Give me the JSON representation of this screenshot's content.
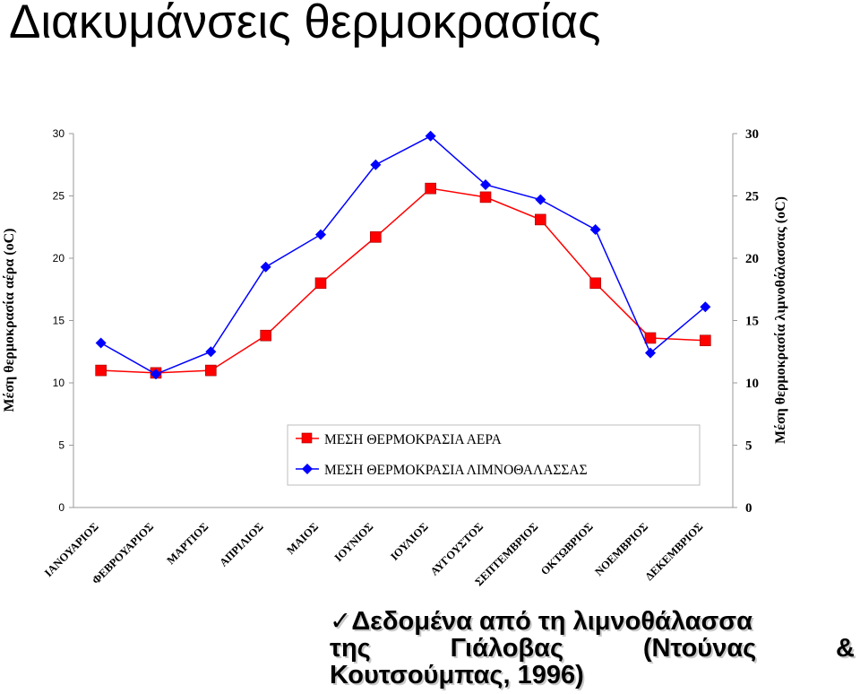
{
  "title": "Διακυμάνσεις θερμοκρασίας",
  "chart_data": {
    "type": "line",
    "categories": [
      "ΙΑΝΟΥΑΡΙΟΣ",
      "ΦΕΒΡΟΥΑΡΙΟΣ",
      "ΜΑΡΤΙΟΣ",
      "ΑΠΡΙΛΙΟΣ",
      "ΜΑΙΟΣ",
      "ΙΟΥΝΙΟΣ",
      "ΙΟΥΛΙΟΣ",
      "ΑΥΓΟΥΣΤΟΣ",
      "ΣΕΠΤΕΜΒΡΙΟΣ",
      "ΟΚΤΩΒΡΙΟΣ",
      "ΝΟΕΜΒΡΙΟΣ",
      "ΔΕΚΕΜΒΡΙΟΣ"
    ],
    "series": [
      {
        "name": "ΜΕΣΗ ΘΕΡΜΟΚΡΑΣΙΑ ΑΕΡΑ",
        "axis": "left",
        "marker": "square",
        "color": "#ff0000",
        "marker_color": "#ff0000",
        "values": [
          11.0,
          10.8,
          11.0,
          13.8,
          18.0,
          21.7,
          25.6,
          24.9,
          23.1,
          18.0,
          13.6,
          13.4
        ]
      },
      {
        "name": "ΜΕΣΗ ΘΕΡΜΟΚΡΑΣΙΑ ΛΙΜΝΟΘΑΛΑΣΣΑΣ",
        "axis": "right",
        "marker": "diamond",
        "color": "#0000ff",
        "marker_color": "#0000ff",
        "values": [
          13.2,
          10.7,
          12.5,
          19.3,
          21.9,
          27.5,
          29.8,
          25.9,
          24.7,
          22.3,
          12.4,
          16.1
        ]
      }
    ],
    "ylabel": "Μέση θερμοκρασία αέρα (oC)",
    "ylabel_right": "Μέση θερμοκρασία λιμνοθάλασσας (oC)",
    "ylim": [
      0,
      30
    ],
    "ylim_right": [
      0,
      30
    ],
    "yticks": [
      "0",
      "5",
      "10",
      "15",
      "20",
      "25",
      "30"
    ],
    "yticks_right": [
      "0",
      "5",
      "10",
      "15",
      "20",
      "25",
      "30"
    ],
    "grid": false,
    "legend_position": "bottom-center"
  },
  "source_note": {
    "check_glyph": "✓",
    "line1": "Δεδομένα από τη λιμνοθάλασσα",
    "line2_words": [
      "της",
      "Γιάλοβας",
      "(Ντούνας",
      "&"
    ],
    "line3": "Κουτσούμπας, 1996)"
  }
}
